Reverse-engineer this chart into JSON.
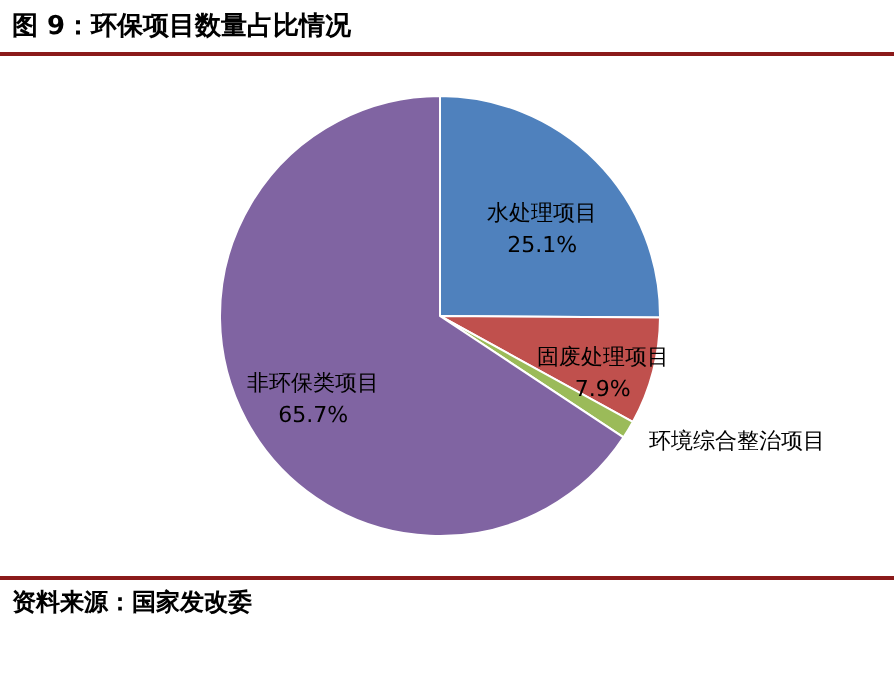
{
  "chart_data": {
    "type": "pie",
    "title": "图 9：环保项目数量占比情况",
    "categories": [
      "水处理项目",
      "固废处理项目",
      "环境综合整治项目",
      "非环保类项目"
    ],
    "values": [
      25.1,
      7.9,
      1.3,
      65.7
    ],
    "colors": [
      "#4f81bd",
      "#c0504d",
      "#9bbb59",
      "#8064a2"
    ],
    "value_labels": [
      "25.1%",
      "7.9%",
      null,
      "65.7%"
    ],
    "annotations": [
      "资料来源：国家发改委"
    ]
  }
}
